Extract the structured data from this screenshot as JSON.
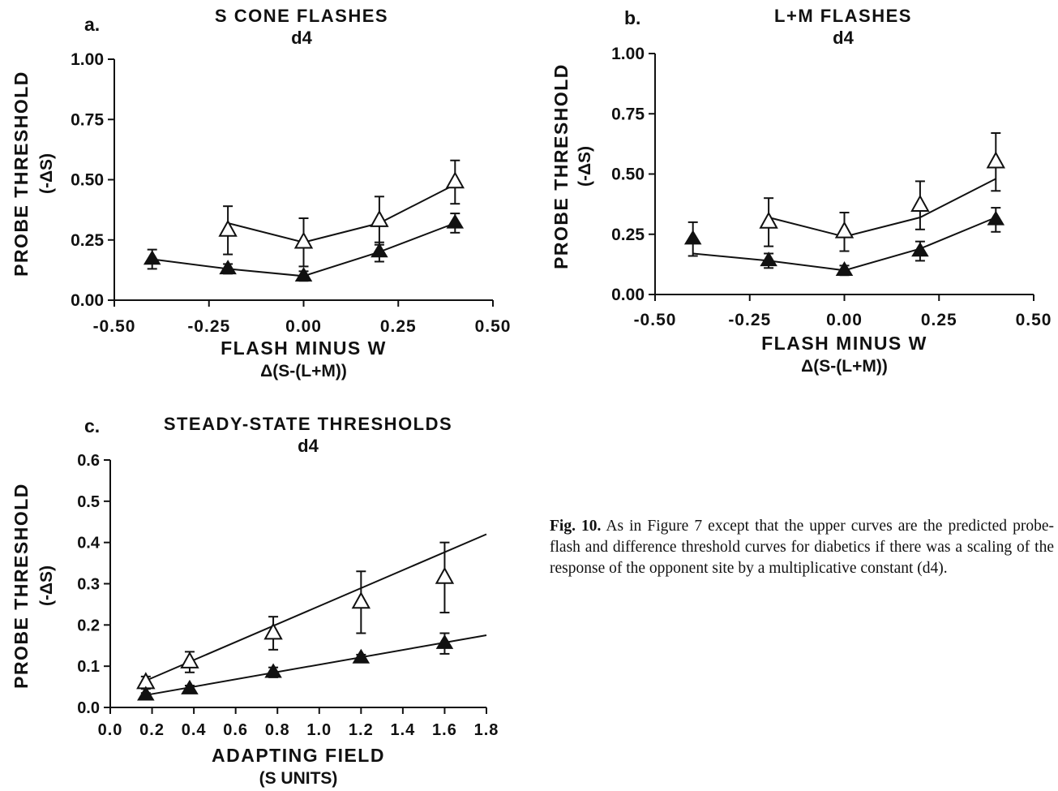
{
  "caption": {
    "label": "Fig. 10.",
    "text": "As in Figure 7 except that the upper curves are the predicted probe-flash and difference threshold curves for diabetics if there was a scaling of the response of the opponent site by a multiplicative constant (d4)."
  },
  "chart_data": [
    {
      "panel": "a.",
      "type": "line",
      "title": "S CONE FLASHES",
      "subtitle": "d4",
      "xlabel": "FLASH MINUS W",
      "xlabel2": "Δ(S-(L+M))",
      "ylabel": "PROBE THRESHOLD",
      "ylabel2": "(-ΔS)",
      "xlim": [
        -0.5,
        0.5
      ],
      "ylim": [
        0,
        1
      ],
      "xticks": [
        -0.5,
        -0.25,
        0,
        0.25,
        0.5
      ],
      "xtick_labels": [
        "-0.50",
        "-0.25",
        "0.00",
        "0.25",
        "0.50"
      ],
      "yticks": [
        0,
        0.25,
        0.5,
        0.75,
        1
      ],
      "ytick_labels": [
        "0.00",
        "0.25",
        "0.50",
        "0.75",
        "1.00"
      ],
      "grid": false,
      "series": [
        {
          "marker": "open-triangle",
          "points": [
            {
              "x": -0.2,
              "y": 0.29,
              "err": 0.1
            },
            {
              "x": 0.0,
              "y": 0.24,
              "err": 0.1
            },
            {
              "x": 0.2,
              "y": 0.33,
              "err": 0.1
            },
            {
              "x": 0.4,
              "y": 0.49,
              "err": 0.09
            }
          ],
          "curve": [
            [
              -0.2,
              0.32
            ],
            [
              0.0,
              0.24
            ],
            [
              0.2,
              0.32
            ],
            [
              0.4,
              0.48
            ]
          ]
        },
        {
          "marker": "filled-triangle",
          "points": [
            {
              "x": -0.4,
              "y": 0.17,
              "err": 0.04
            },
            {
              "x": -0.2,
              "y": 0.13,
              "err": 0.02
            },
            {
              "x": 0.0,
              "y": 0.1,
              "err": 0.02
            },
            {
              "x": 0.2,
              "y": 0.2,
              "err": 0.04
            },
            {
              "x": 0.4,
              "y": 0.32,
              "err": 0.04
            }
          ],
          "curve": [
            [
              -0.4,
              0.17
            ],
            [
              -0.2,
              0.13
            ],
            [
              0.0,
              0.1
            ],
            [
              0.2,
              0.2
            ],
            [
              0.4,
              0.32
            ]
          ]
        }
      ]
    },
    {
      "panel": "b.",
      "type": "line",
      "title": "L+M FLASHES",
      "subtitle": "d4",
      "xlabel": "FLASH MINUS W",
      "xlabel2": "Δ(S-(L+M))",
      "ylabel": "PROBE THRESHOLD",
      "ylabel2": "(-ΔS)",
      "xlim": [
        -0.5,
        0.5
      ],
      "ylim": [
        0,
        1
      ],
      "xticks": [
        -0.5,
        -0.25,
        0,
        0.25,
        0.5
      ],
      "xtick_labels": [
        "-0.50",
        "-0.25",
        "0.00",
        "0.25",
        "0.50"
      ],
      "yticks": [
        0,
        0.25,
        0.5,
        0.75,
        1
      ],
      "ytick_labels": [
        "0.00",
        "0.25",
        "0.50",
        "0.75",
        "1.00"
      ],
      "grid": false,
      "series": [
        {
          "marker": "open-triangle",
          "points": [
            {
              "x": -0.2,
              "y": 0.3,
              "err": 0.1
            },
            {
              "x": 0.0,
              "y": 0.26,
              "err": 0.08
            },
            {
              "x": 0.2,
              "y": 0.37,
              "err": 0.1
            },
            {
              "x": 0.4,
              "y": 0.55,
              "err": 0.12
            }
          ],
          "curve": [
            [
              -0.2,
              0.32
            ],
            [
              0.0,
              0.24
            ],
            [
              0.2,
              0.32
            ],
            [
              0.4,
              0.48
            ]
          ]
        },
        {
          "marker": "filled-triangle",
          "points": [
            {
              "x": -0.4,
              "y": 0.23,
              "err": 0.07
            },
            {
              "x": -0.2,
              "y": 0.14,
              "err": 0.03
            },
            {
              "x": 0.0,
              "y": 0.1,
              "err": 0.02
            },
            {
              "x": 0.2,
              "y": 0.18,
              "err": 0.04
            },
            {
              "x": 0.4,
              "y": 0.31,
              "err": 0.05
            }
          ],
          "curve": [
            [
              -0.4,
              0.17
            ],
            [
              -0.2,
              0.14
            ],
            [
              0.0,
              0.1
            ],
            [
              0.2,
              0.19
            ],
            [
              0.4,
              0.32
            ]
          ]
        }
      ]
    },
    {
      "panel": "c.",
      "type": "line",
      "title": "STEADY-STATE THRESHOLDS",
      "subtitle": "d4",
      "xlabel": "ADAPTING FIELD",
      "xlabel2": "(S UNITS)",
      "ylabel": "PROBE THRESHOLD",
      "ylabel2": "(-ΔS)",
      "xlim": [
        0,
        1.8
      ],
      "ylim": [
        0,
        0.6
      ],
      "xticks": [
        0,
        0.2,
        0.4,
        0.6,
        0.8,
        1.0,
        1.2,
        1.4,
        1.6,
        1.8
      ],
      "xtick_labels": [
        "0.0",
        "0.2",
        "0.4",
        "0.6",
        "0.8",
        "1.0",
        "1.2",
        "1.4",
        "1.6",
        "1.8"
      ],
      "yticks": [
        0,
        0.1,
        0.2,
        0.3,
        0.4,
        0.5,
        0.6
      ],
      "ytick_labels": [
        "0.0",
        "0.1",
        "0.2",
        "0.3",
        "0.4",
        "0.5",
        "0.6"
      ],
      "grid": false,
      "series": [
        {
          "marker": "open-triangle",
          "points": [
            {
              "x": 0.17,
              "y": 0.06,
              "err": 0.015
            },
            {
              "x": 0.38,
              "y": 0.11,
              "err": 0.025
            },
            {
              "x": 0.78,
              "y": 0.18,
              "err": 0.04
            },
            {
              "x": 1.2,
              "y": 0.255,
              "err": 0.075
            },
            {
              "x": 1.6,
              "y": 0.315,
              "err": 0.085
            }
          ],
          "curve": [
            [
              0.17,
              0.065
            ],
            [
              1.8,
              0.42
            ]
          ]
        },
        {
          "marker": "filled-triangle",
          "points": [
            {
              "x": 0.17,
              "y": 0.03,
              "err": 0.005
            },
            {
              "x": 0.38,
              "y": 0.045,
              "err": 0.008
            },
            {
              "x": 0.78,
              "y": 0.085,
              "err": 0.012
            },
            {
              "x": 1.2,
              "y": 0.12,
              "err": 0.008
            },
            {
              "x": 1.6,
              "y": 0.155,
              "err": 0.025
            }
          ],
          "curve": [
            [
              0.17,
              0.03
            ],
            [
              1.8,
              0.175
            ]
          ]
        }
      ]
    }
  ]
}
